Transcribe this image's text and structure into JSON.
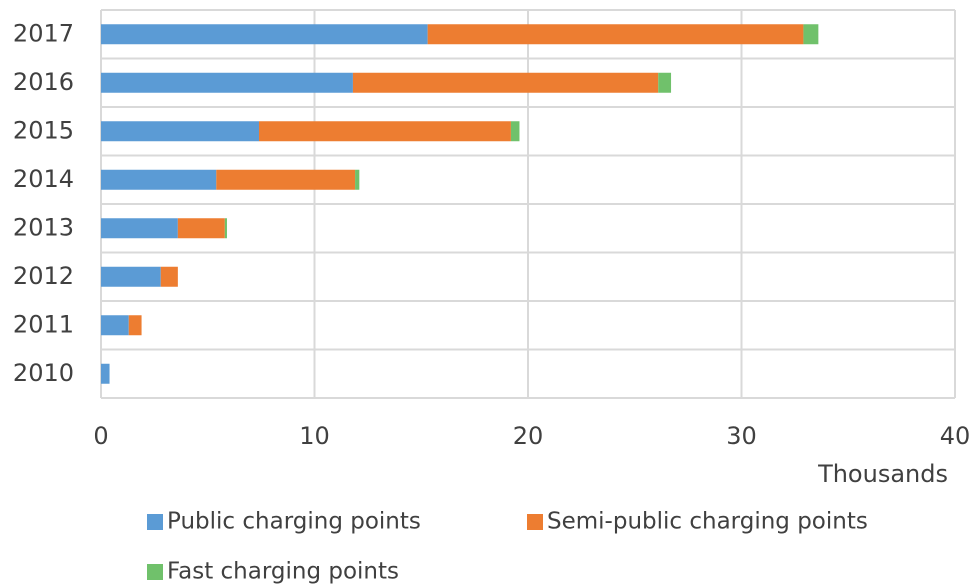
{
  "chart_data": {
    "type": "stacked-bar-horizontal",
    "categories": [
      "2017",
      "2016",
      "2015",
      "2014",
      "2013",
      "2012",
      "2011",
      "2010"
    ],
    "series": [
      {
        "name": "Public charging points",
        "color": "#5b9bd5",
        "values": [
          15.3,
          11.8,
          7.4,
          5.4,
          3.6,
          2.8,
          1.3,
          0.4
        ]
      },
      {
        "name": "Semi-public charging points",
        "color": "#ed7d31",
        "values": [
          17.6,
          14.3,
          11.8,
          6.5,
          2.2,
          0.8,
          0.6,
          0
        ]
      },
      {
        "name": "Fast charging points",
        "color": "#70c16b",
        "values": [
          0.7,
          0.6,
          0.4,
          0.2,
          0.1,
          0,
          0,
          0
        ]
      }
    ],
    "xlabel": "Thousands",
    "xlim": [
      0,
      40
    ],
    "xticks": [
      0,
      10,
      20,
      30,
      40
    ],
    "grid": true,
    "legend": "bottom"
  }
}
